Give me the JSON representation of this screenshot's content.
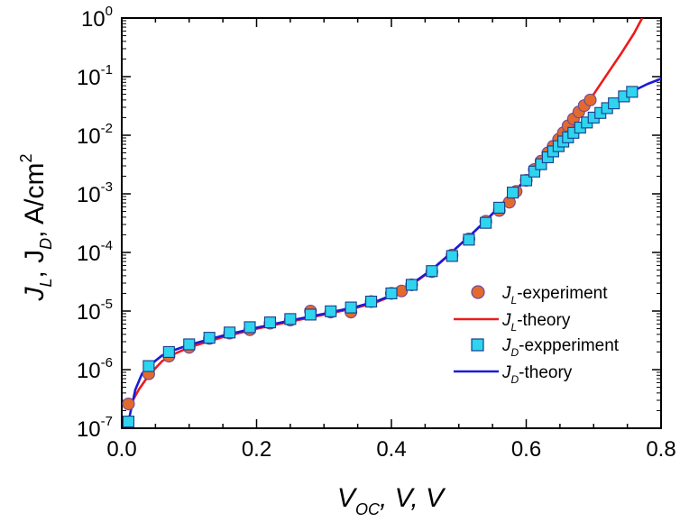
{
  "chart_data": {
    "type": "scatter",
    "title": "",
    "xlabel": {
      "main": "V",
      "sub": "OC",
      "rest": ", V, V"
    },
    "ylabel": {
      "j1": "J",
      "s1": "L",
      "mid": ", J",
      "s2": "D",
      "unit": ", A/cm",
      "sup": "2"
    },
    "x_scale": "linear",
    "y_scale": "log",
    "xlim": [
      0.0,
      0.8
    ],
    "ylim": [
      1e-07,
      1
    ],
    "x_ticks": [
      {
        "value": 0.0,
        "label": "0.0"
      },
      {
        "value": 0.2,
        "label": "0.2"
      },
      {
        "value": 0.4,
        "label": "0.4"
      },
      {
        "value": 0.6,
        "label": "0.6"
      },
      {
        "value": 0.8,
        "label": "0.8"
      }
    ],
    "y_ticks": [
      {
        "value": 1e-07,
        "base": "10",
        "exp": "-7"
      },
      {
        "value": 1e-06,
        "base": "10",
        "exp": "-6"
      },
      {
        "value": 1e-05,
        "base": "10",
        "exp": "-5"
      },
      {
        "value": 0.0001,
        "base": "10",
        "exp": "-4"
      },
      {
        "value": 0.001,
        "base": "10",
        "exp": "-3"
      },
      {
        "value": 0.01,
        "base": "10",
        "exp": "-2"
      },
      {
        "value": 0.1,
        "base": "10",
        "exp": "-1"
      },
      {
        "value": 1,
        "base": "10",
        "exp": "0"
      }
    ],
    "grid": false,
    "legend_position": "lower-right",
    "legend": [
      {
        "symbol": "J",
        "sub": "L",
        "text": "-experiment",
        "kind": "circle",
        "color": "#e36a2e"
      },
      {
        "symbol": "J",
        "sub": "L",
        "text": "-theory",
        "kind": "line",
        "color": "#ee1b1b"
      },
      {
        "symbol": "J",
        "sub": "D",
        "text": "-expperiment",
        "kind": "square",
        "color": "#2fd4ef"
      },
      {
        "symbol": "J",
        "sub": "D",
        "text": "-theory",
        "kind": "line",
        "color": "#1a1ad8"
      }
    ],
    "series": [
      {
        "name": "J_L-experiment",
        "kind": "circle",
        "color": "#e36a2e",
        "edge": "#6b4aa0",
        "points": [
          [
            0.01,
            2.6e-07
          ],
          [
            0.04,
            8.5e-07
          ],
          [
            0.07,
            1.7e-06
          ],
          [
            0.1,
            2.4e-06
          ],
          [
            0.13,
            3.4e-06
          ],
          [
            0.16,
            4.2e-06
          ],
          [
            0.19,
            4.8e-06
          ],
          [
            0.22,
            6.2e-06
          ],
          [
            0.25,
            7e-06
          ],
          [
            0.28,
            1e-05
          ],
          [
            0.31,
            9.6e-06
          ],
          [
            0.34,
            9.6e-06
          ],
          [
            0.37,
            1.45e-05
          ],
          [
            0.4,
            2e-05
          ],
          [
            0.415,
            2.2e-05
          ],
          [
            0.43,
            2.8e-05
          ],
          [
            0.46,
            4.7e-05
          ],
          [
            0.49,
            9e-05
          ],
          [
            0.515,
            0.00017
          ],
          [
            0.54,
            0.00034
          ],
          [
            0.56,
            0.00052
          ],
          [
            0.575,
            0.00072
          ],
          [
            0.585,
            0.0011
          ],
          [
            0.6,
            0.0017
          ],
          [
            0.612,
            0.0026
          ],
          [
            0.622,
            0.0036
          ],
          [
            0.632,
            0.005
          ],
          [
            0.64,
            0.0065
          ],
          [
            0.648,
            0.0085
          ],
          [
            0.655,
            0.011
          ],
          [
            0.662,
            0.0145
          ],
          [
            0.67,
            0.019
          ],
          [
            0.678,
            0.025
          ],
          [
            0.686,
            0.032
          ],
          [
            0.695,
            0.04
          ]
        ]
      },
      {
        "name": "J_L-theory",
        "kind": "line",
        "color": "#ee1b1b",
        "points": [
          [
            0.01,
            2.2e-07
          ],
          [
            0.025,
            4.5e-07
          ],
          [
            0.04,
            8e-07
          ],
          [
            0.06,
            1.4e-06
          ],
          [
            0.08,
            1.9e-06
          ],
          [
            0.1,
            2.4e-06
          ],
          [
            0.15,
            3.6e-06
          ],
          [
            0.2,
            5e-06
          ],
          [
            0.25,
            6.6e-06
          ],
          [
            0.3,
            8.7e-06
          ],
          [
            0.35,
            1.15e-05
          ],
          [
            0.38,
            1.45e-05
          ],
          [
            0.4,
            1.8e-05
          ],
          [
            0.42,
            2.4e-05
          ],
          [
            0.44,
            3.4e-05
          ],
          [
            0.46,
            5e-05
          ],
          [
            0.48,
            8e-05
          ],
          [
            0.5,
            0.00013
          ],
          [
            0.52,
            0.00021
          ],
          [
            0.54,
            0.00035
          ],
          [
            0.56,
            0.0006
          ],
          [
            0.58,
            0.00105
          ],
          [
            0.6,
            0.0018
          ],
          [
            0.62,
            0.0033
          ],
          [
            0.64,
            0.0062
          ],
          [
            0.66,
            0.012
          ],
          [
            0.68,
            0.024
          ],
          [
            0.7,
            0.05
          ],
          [
            0.72,
            0.11
          ],
          [
            0.74,
            0.24
          ],
          [
            0.76,
            0.55
          ],
          [
            0.772,
            1.0
          ]
        ]
      },
      {
        "name": "J_D-expperiment",
        "kind": "square",
        "color": "#2fd4ef",
        "edge": "#1a3c8a",
        "points": [
          [
            0.01,
            1.3e-07
          ],
          [
            0.04,
            1.15e-06
          ],
          [
            0.07,
            2e-06
          ],
          [
            0.1,
            2.7e-06
          ],
          [
            0.13,
            3.5e-06
          ],
          [
            0.16,
            4.3e-06
          ],
          [
            0.19,
            5.3e-06
          ],
          [
            0.22,
            6.4e-06
          ],
          [
            0.25,
            7.3e-06
          ],
          [
            0.28,
            8.7e-06
          ],
          [
            0.31,
            9.9e-06
          ],
          [
            0.34,
            1.15e-05
          ],
          [
            0.37,
            1.45e-05
          ],
          [
            0.4,
            2e-05
          ],
          [
            0.43,
            2.8e-05
          ],
          [
            0.46,
            4.8e-05
          ],
          [
            0.49,
            8.7e-05
          ],
          [
            0.515,
            0.000165
          ],
          [
            0.54,
            0.00032
          ],
          [
            0.56,
            0.00058
          ],
          [
            0.58,
            0.00105
          ],
          [
            0.6,
            0.0017
          ],
          [
            0.612,
            0.0024
          ],
          [
            0.622,
            0.0032
          ],
          [
            0.632,
            0.0042
          ],
          [
            0.64,
            0.0053
          ],
          [
            0.648,
            0.0065
          ],
          [
            0.655,
            0.0078
          ],
          [
            0.662,
            0.0092
          ],
          [
            0.67,
            0.011
          ],
          [
            0.68,
            0.0135
          ],
          [
            0.69,
            0.0165
          ],
          [
            0.7,
            0.02
          ],
          [
            0.71,
            0.024
          ],
          [
            0.72,
            0.029
          ],
          [
            0.73,
            0.035
          ],
          [
            0.745,
            0.046
          ],
          [
            0.757,
            0.055
          ]
        ]
      },
      {
        "name": "J_D-theory",
        "kind": "line",
        "color": "#1a1ad8",
        "points": [
          [
            0.01,
            1.3e-07
          ],
          [
            0.02,
            4.5e-07
          ],
          [
            0.03,
            8.5e-07
          ],
          [
            0.04,
            1.15e-06
          ],
          [
            0.06,
            1.75e-06
          ],
          [
            0.08,
            2.2e-06
          ],
          [
            0.1,
            2.65e-06
          ],
          [
            0.15,
            3.8e-06
          ],
          [
            0.2,
            5.2e-06
          ],
          [
            0.25,
            6.9e-06
          ],
          [
            0.3,
            9e-06
          ],
          [
            0.35,
            1.2e-05
          ],
          [
            0.38,
            1.5e-05
          ],
          [
            0.4,
            1.85e-05
          ],
          [
            0.42,
            2.5e-05
          ],
          [
            0.44,
            3.5e-05
          ],
          [
            0.46,
            5.1e-05
          ],
          [
            0.48,
            8.1e-05
          ],
          [
            0.5,
            0.00013
          ],
          [
            0.52,
            0.00021
          ],
          [
            0.54,
            0.00035
          ],
          [
            0.56,
            0.0006
          ],
          [
            0.58,
            0.00102
          ],
          [
            0.6,
            0.00175
          ],
          [
            0.62,
            0.003
          ],
          [
            0.64,
            0.0052
          ],
          [
            0.66,
            0.0085
          ],
          [
            0.68,
            0.0135
          ],
          [
            0.7,
            0.02
          ],
          [
            0.72,
            0.029
          ],
          [
            0.74,
            0.042
          ],
          [
            0.76,
            0.058
          ],
          [
            0.78,
            0.075
          ],
          [
            0.8,
            0.092
          ]
        ]
      }
    ]
  }
}
